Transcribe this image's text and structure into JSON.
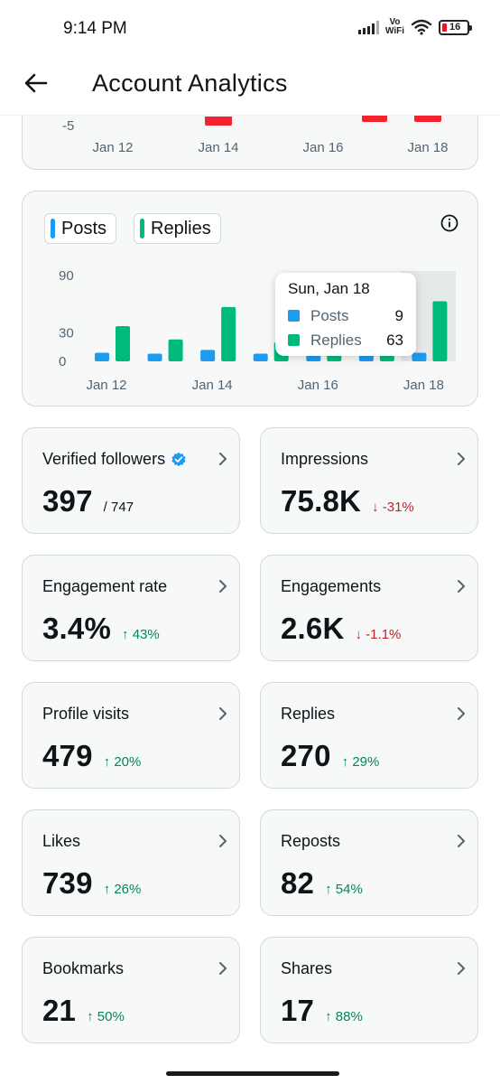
{
  "status_bar": {
    "time": "9:14 PM",
    "network_top": "Vo",
    "network_bottom": "WiFi",
    "battery": "16"
  },
  "header": {
    "title": "Account Analytics"
  },
  "top_chart": {
    "y_tick": "-5",
    "x_ticks": [
      "Jan 12",
      "Jan 14",
      "Jan 16",
      "Jan 18"
    ]
  },
  "chart": {
    "legend": [
      {
        "label": "Posts",
        "color": "#1d9bf0"
      },
      {
        "label": "Replies",
        "color": "#00ba7c"
      }
    ],
    "tooltip": {
      "title": "Sun, Jan 18",
      "posts_label": "Posts",
      "posts_value": "9",
      "replies_label": "Replies",
      "replies_value": "63"
    }
  },
  "chart_data": {
    "type": "bar",
    "categories": [
      "Jan 12",
      "Jan 13",
      "Jan 14",
      "Jan 15",
      "Jan 16",
      "Jan 17",
      "Jan 18"
    ],
    "x_tick_labels": [
      "Jan 12",
      "Jan 14",
      "Jan 16",
      "Jan 18"
    ],
    "series": [
      {
        "name": "Posts",
        "values": [
          9,
          8,
          12,
          8,
          7,
          7,
          9
        ]
      },
      {
        "name": "Replies",
        "values": [
          37,
          23,
          57,
          20,
          15,
          20,
          63
        ]
      }
    ],
    "y_ticks": [
      "90",
      "30",
      "0"
    ],
    "ylim": [
      0,
      90
    ],
    "highlight_index": 6
  },
  "metrics": [
    {
      "label": "Verified followers",
      "value": "397",
      "sub": "/ 747",
      "change": "",
      "dir": "",
      "verified": true
    },
    {
      "label": "Impressions",
      "value": "75.8K",
      "sub": "",
      "change": "↓ -31%",
      "dir": "down"
    },
    {
      "label": "Engagement rate",
      "value": "3.4%",
      "sub": "",
      "change": "↑ 43%",
      "dir": "up"
    },
    {
      "label": "Engagements",
      "value": "2.6K",
      "sub": "",
      "change": "↓ -1.1%",
      "dir": "down"
    },
    {
      "label": "Profile visits",
      "value": "479",
      "sub": "",
      "change": "↑ 20%",
      "dir": "up"
    },
    {
      "label": "Replies",
      "value": "270",
      "sub": "",
      "change": "↑ 29%",
      "dir": "up"
    },
    {
      "label": "Likes",
      "value": "739",
      "sub": "",
      "change": "↑ 26%",
      "dir": "up"
    },
    {
      "label": "Reposts",
      "value": "82",
      "sub": "",
      "change": "↑ 54%",
      "dir": "up"
    },
    {
      "label": "Bookmarks",
      "value": "21",
      "sub": "",
      "change": "↑ 50%",
      "dir": "up"
    },
    {
      "label": "Shares",
      "value": "17",
      "sub": "",
      "change": "↑ 88%",
      "dir": "up"
    }
  ],
  "colors": {
    "up": "#00875a",
    "down": "#c4202c",
    "verified": "#1d9bf0"
  }
}
